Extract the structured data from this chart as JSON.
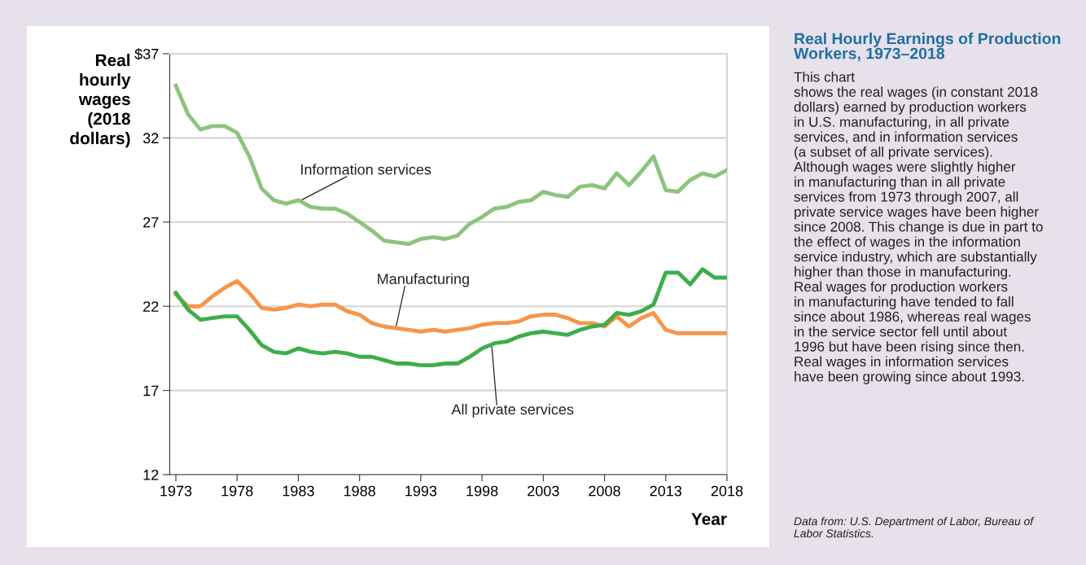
{
  "chart_data": {
    "type": "line",
    "title": "Real Hourly Earnings of Production\nWorkers, 1973–2018",
    "subtitle": "This chart\nshows the real wages (in constant 2018\ndollars) earned by production workers\nin U.S. manufacturing, in all private\nservices, and in information services\n(a subset of all private services).\nAlthough wages were slightly higher\nin manufacturing than in all private\nservices from 1973 through 2007, all\nprivate service wages have been higher\nsince 2008. This change is due in part to\nthe effect of wages in the information\nservice industry, which are substantially\nhigher than those in manufacturing.\nReal wages for production workers\nin manufacturing have tended to fall\nsince about 1986, whereas real wages\nin the service sector fell until about\n1996 but have been rising since then.\nReal wages in information services\nhave been growing since about 1993.",
    "xlabel": "Year",
    "ylabel": "Real\nhourly\nwages\n(2018\ndollars)",
    "annotations": [
      "Data from: U.S. Department of Labor, Bureau of\nLabor Statistics."
    ],
    "x": [
      1973,
      1974,
      1975,
      1976,
      1977,
      1978,
      1979,
      1980,
      1981,
      1982,
      1983,
      1984,
      1985,
      1986,
      1987,
      1988,
      1989,
      1990,
      1991,
      1992,
      1993,
      1994,
      1995,
      1996,
      1997,
      1998,
      1999,
      2000,
      2001,
      2002,
      2003,
      2004,
      2005,
      2006,
      2007,
      2008,
      2009,
      2010,
      2011,
      2012,
      2013,
      2014,
      2015,
      2016,
      2017,
      2018
    ],
    "series": [
      {
        "name": "Information services",
        "color": "#8cc47e",
        "values": [
          35.1,
          33.4,
          32.5,
          32.7,
          32.7,
          32.3,
          30.9,
          29.0,
          28.3,
          28.1,
          28.3,
          27.9,
          27.8,
          27.8,
          27.5,
          27.0,
          26.5,
          25.9,
          25.8,
          25.7,
          26.0,
          26.1,
          26.0,
          26.2,
          26.9,
          27.3,
          27.8,
          27.9,
          28.2,
          28.3,
          28.8,
          28.6,
          28.5,
          29.1,
          29.2,
          29.0,
          29.9,
          29.2,
          30.0,
          30.9,
          28.9,
          28.8,
          29.5,
          29.9,
          29.7,
          30.1
        ]
      },
      {
        "name": "Manufacturing",
        "color": "#f7954a",
        "values": [
          22.7,
          22.0,
          22.0,
          22.6,
          23.1,
          23.5,
          22.8,
          21.9,
          21.8,
          21.9,
          22.1,
          22.0,
          22.1,
          22.1,
          21.7,
          21.5,
          21.0,
          20.8,
          20.7,
          20.6,
          20.5,
          20.6,
          20.5,
          20.6,
          20.7,
          20.9,
          21.0,
          21.0,
          21.1,
          21.4,
          21.5,
          21.5,
          21.3,
          21.0,
          21.0,
          20.8,
          21.4,
          20.8,
          21.3,
          21.6,
          20.6,
          20.4,
          20.4,
          20.4,
          20.4,
          20.4
        ]
      },
      {
        "name": "All private services",
        "color": "#3dae4a",
        "values": [
          22.8,
          21.8,
          21.2,
          21.3,
          21.4,
          21.4,
          20.6,
          19.7,
          19.3,
          19.2,
          19.5,
          19.3,
          19.2,
          19.3,
          19.2,
          19.0,
          19.0,
          18.8,
          18.6,
          18.6,
          18.5,
          18.5,
          18.6,
          18.6,
          19.0,
          19.5,
          19.8,
          19.9,
          20.2,
          20.4,
          20.5,
          20.4,
          20.3,
          20.6,
          20.8,
          20.9,
          21.6,
          21.5,
          21.7,
          22.1,
          24.0,
          24.0,
          23.3,
          24.2,
          23.7,
          23.7
        ]
      }
    ],
    "xlim": [
      1972.5,
      2018
    ],
    "xticks": [
      1973,
      1978,
      1983,
      1988,
      1993,
      1998,
      2003,
      2008,
      2013,
      2018
    ],
    "ylim": [
      12,
      37
    ],
    "yticks": [
      12,
      17,
      22,
      27,
      32,
      {
        "value": 37,
        "label": "$37"
      }
    ],
    "grid": "y",
    "legend": false,
    "marker": "none",
    "line_style": "solid"
  }
}
